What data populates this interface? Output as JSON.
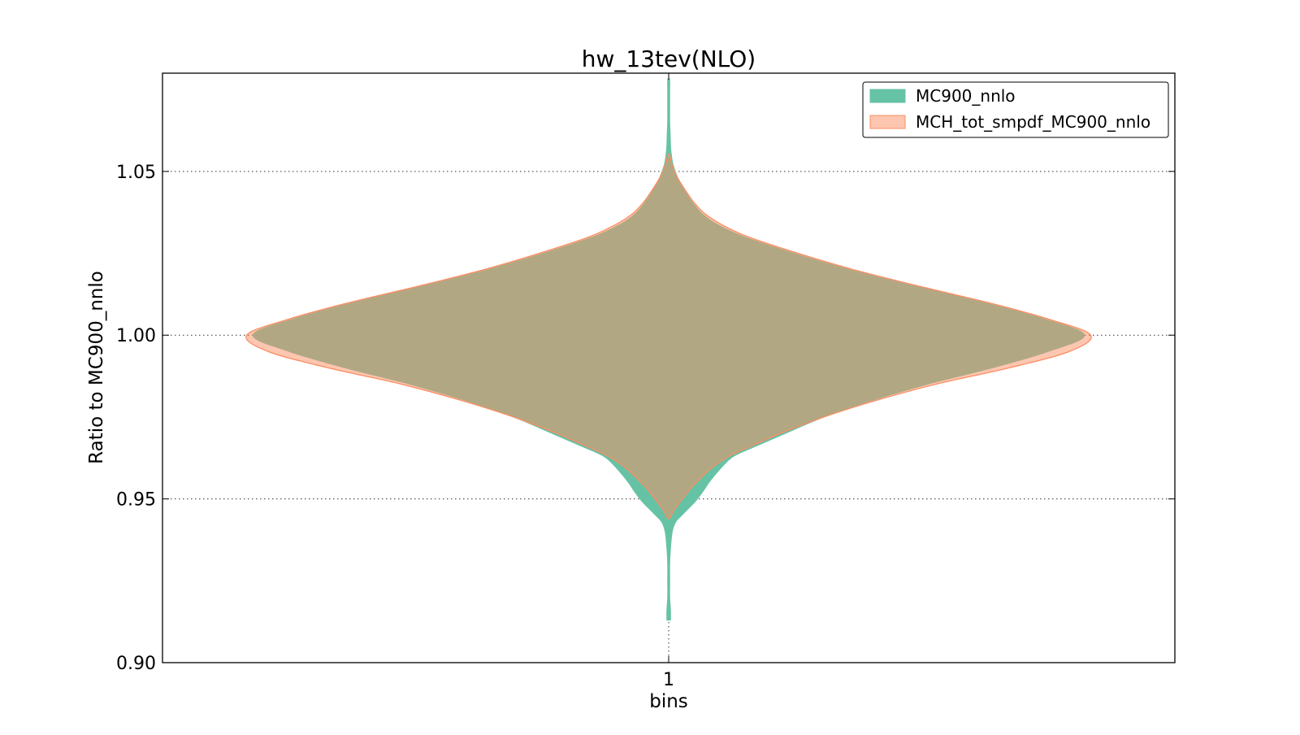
{
  "chart_data": {
    "type": "violin",
    "title": "hw_13tev(NLO)",
    "xlabel": "bins",
    "ylabel": "Ratio to MC900_nnlo",
    "categories": [
      "1"
    ],
    "ylim": [
      0.9,
      1.08
    ],
    "yticks": [
      {
        "value": 0.9,
        "label": "0.90"
      },
      {
        "value": 0.95,
        "label": "0.95"
      },
      {
        "value": 1.0,
        "label": "1.00"
      },
      {
        "value": 1.05,
        "label": "1.05"
      }
    ],
    "grid": true,
    "legend_position": "top-right",
    "series": [
      {
        "name": "MC900_nnlo",
        "color": "#66c2a5",
        "edge": "#66c2a5",
        "y": [
          0.913,
          0.916,
          0.92,
          0.925,
          0.93,
          0.935,
          0.94,
          0.943,
          0.945,
          0.947,
          0.949,
          0.951,
          0.953,
          0.955,
          0.957,
          0.96,
          0.963,
          0.966,
          0.97,
          0.975,
          0.98,
          0.985,
          0.99,
          0.995,
          1.0,
          1.005,
          1.01,
          1.015,
          1.02,
          1.025,
          1.03,
          1.034,
          1.037,
          1.04,
          1.043,
          1.046,
          1.049,
          1.052,
          1.055,
          1.058,
          1.062,
          1.066,
          1.07,
          1.075,
          1.078
        ],
        "half_width": [
          0.004,
          0.004,
          0.002,
          0.002,
          0.002,
          0.004,
          0.008,
          0.016,
          0.03,
          0.045,
          0.06,
          0.072,
          0.083,
          0.093,
          0.105,
          0.125,
          0.15,
          0.2,
          0.27,
          0.36,
          0.47,
          0.6,
          0.75,
          0.88,
          0.965,
          0.87,
          0.73,
          0.57,
          0.42,
          0.29,
          0.175,
          0.11,
          0.078,
          0.058,
          0.042,
          0.028,
          0.018,
          0.01,
          0.006,
          0.004,
          0.003,
          0.002,
          0.002,
          0.002,
          0.002
        ]
      },
      {
        "name": "MCH_tot_smpdf_MC900_nnlo",
        "color": "#fc8d62",
        "edge": "#fc8d62",
        "y": [
          0.944,
          0.946,
          0.948,
          0.95,
          0.953,
          0.956,
          0.96,
          0.963,
          0.966,
          0.97,
          0.975,
          0.98,
          0.985,
          0.99,
          0.995,
          1.0,
          1.005,
          1.01,
          1.015,
          1.02,
          1.025,
          1.03,
          1.034,
          1.037,
          1.04,
          1.043,
          1.046,
          1.049,
          1.052,
          1.055
        ],
        "half_width": [
          0.002,
          0.01,
          0.02,
          0.032,
          0.05,
          0.072,
          0.105,
          0.14,
          0.19,
          0.26,
          0.36,
          0.48,
          0.62,
          0.79,
          0.93,
          0.98,
          0.88,
          0.74,
          0.58,
          0.43,
          0.3,
          0.185,
          0.12,
          0.085,
          0.062,
          0.045,
          0.03,
          0.017,
          0.008,
          0.002
        ]
      }
    ]
  }
}
